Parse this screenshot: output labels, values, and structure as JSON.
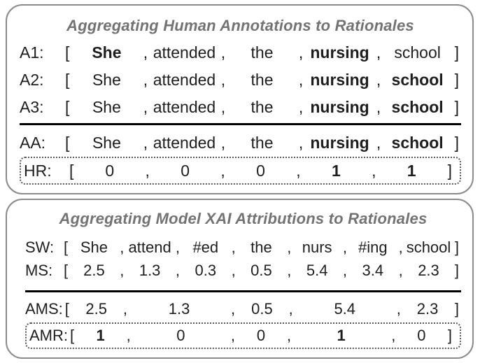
{
  "figure": {
    "colors": {
      "panel_border": "#8a8a8a",
      "title": "#737373",
      "text": "#1e1e1e",
      "divider": "#000000",
      "dotted_box": "#595959",
      "background": "#ffffff"
    },
    "punctuation": {
      "open_bracket": "[",
      "close_bracket": "]",
      "separator": ","
    },
    "panels": [
      {
        "id": "human-annotations",
        "title": "Aggregating Human Annotations to Rationales",
        "rows_top": [
          {
            "label": "A1:",
            "boxed": false,
            "tokens": [
              {
                "t": "She",
                "bold": true,
                "span": 1
              },
              {
                "t": "attended",
                "bold": false,
                "span": 1
              },
              {
                "t": "the",
                "bold": false,
                "span": 1
              },
              {
                "t": "nursing",
                "bold": true,
                "span": 1
              },
              {
                "t": "school",
                "bold": false,
                "span": 1
              }
            ]
          },
          {
            "label": "A2:",
            "boxed": false,
            "tokens": [
              {
                "t": "She",
                "bold": false,
                "span": 1
              },
              {
                "t": "attended",
                "bold": false,
                "span": 1
              },
              {
                "t": "the",
                "bold": false,
                "span": 1
              },
              {
                "t": "nursing",
                "bold": true,
                "span": 1
              },
              {
                "t": "school",
                "bold": true,
                "span": 1
              }
            ]
          },
          {
            "label": "A3:",
            "boxed": false,
            "tokens": [
              {
                "t": "She",
                "bold": false,
                "span": 1
              },
              {
                "t": "attended",
                "bold": false,
                "span": 1
              },
              {
                "t": "the",
                "bold": false,
                "span": 1
              },
              {
                "t": "nursing",
                "bold": true,
                "span": 1
              },
              {
                "t": "school",
                "bold": true,
                "span": 1
              }
            ]
          }
        ],
        "rows_bottom": [
          {
            "label": "AA:",
            "boxed": false,
            "tokens": [
              {
                "t": "She",
                "bold": false,
                "span": 1
              },
              {
                "t": "attended",
                "bold": false,
                "span": 1
              },
              {
                "t": "the",
                "bold": false,
                "span": 1
              },
              {
                "t": "nursing",
                "bold": true,
                "span": 1
              },
              {
                "t": "school",
                "bold": true,
                "span": 1
              }
            ]
          },
          {
            "label": "HR:",
            "boxed": true,
            "tokens": [
              {
                "t": "0",
                "bold": false,
                "span": 1
              },
              {
                "t": "0",
                "bold": false,
                "span": 1
              },
              {
                "t": "0",
                "bold": false,
                "span": 1
              },
              {
                "t": "1",
                "bold": true,
                "span": 1
              },
              {
                "t": "1",
                "bold": true,
                "span": 1
              }
            ]
          }
        ]
      },
      {
        "id": "model-attributions",
        "title": "Aggregating Model XAI Attributions to Rationales",
        "rows_top": [
          {
            "label": "SW:",
            "boxed": false,
            "tokens": [
              {
                "t": "She",
                "bold": false,
                "span": 1
              },
              {
                "t": "attend",
                "bold": false,
                "span": 1
              },
              {
                "t": "#ed",
                "bold": false,
                "span": 1
              },
              {
                "t": "the",
                "bold": false,
                "span": 1
              },
              {
                "t": "nurs",
                "bold": false,
                "span": 1
              },
              {
                "t": "#ing",
                "bold": false,
                "span": 1
              },
              {
                "t": "school",
                "bold": false,
                "span": 1
              }
            ]
          },
          {
            "label": "MS:",
            "boxed": false,
            "tokens": [
              {
                "t": "2.5",
                "bold": false,
                "span": 1
              },
              {
                "t": "1.3",
                "bold": false,
                "span": 1
              },
              {
                "t": "0.3",
                "bold": false,
                "span": 1
              },
              {
                "t": "0.5",
                "bold": false,
                "span": 1
              },
              {
                "t": "5.4",
                "bold": false,
                "span": 1
              },
              {
                "t": "3.4",
                "bold": false,
                "span": 1
              },
              {
                "t": "2.3",
                "bold": false,
                "span": 1
              }
            ]
          }
        ],
        "rows_bottom": [
          {
            "label": "AMS:",
            "boxed": false,
            "tokens": [
              {
                "t": "2.5",
                "bold": false,
                "span": 1
              },
              {
                "t": "1.3",
                "bold": false,
                "span": 2
              },
              {
                "t": "0.5",
                "bold": false,
                "span": 1
              },
              {
                "t": "5.4",
                "bold": false,
                "span": 2
              },
              {
                "t": "2.3",
                "bold": false,
                "span": 1
              }
            ]
          },
          {
            "label": "AMR:",
            "boxed": true,
            "tokens": [
              {
                "t": "1",
                "bold": true,
                "span": 1
              },
              {
                "t": "0",
                "bold": false,
                "span": 2
              },
              {
                "t": "0",
                "bold": false,
                "span": 1
              },
              {
                "t": "1",
                "bold": true,
                "span": 2
              },
              {
                "t": "0",
                "bold": false,
                "span": 1
              }
            ]
          }
        ]
      }
    ]
  }
}
